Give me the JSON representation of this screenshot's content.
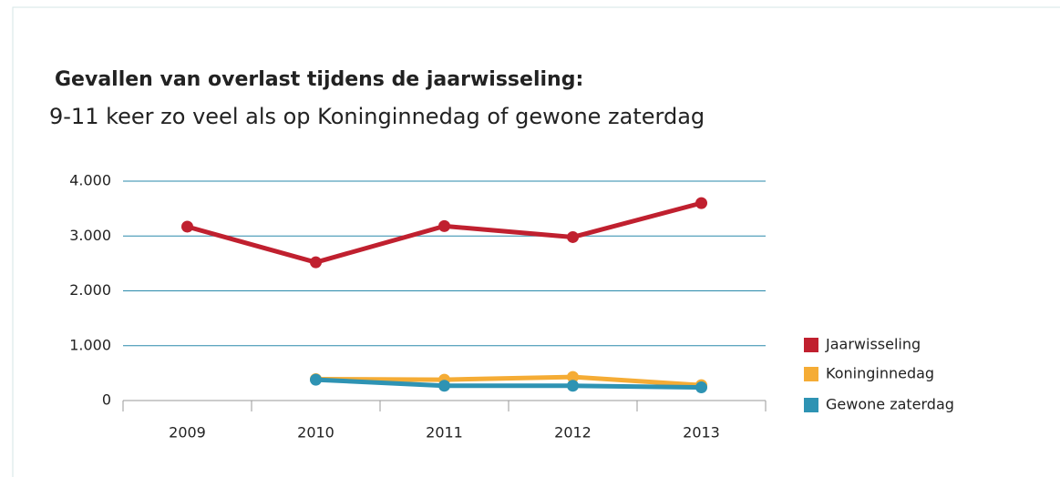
{
  "chart_data": {
    "type": "line",
    "title": "Gevallen van overlast tijdens de jaarwisseling:",
    "subtitle": "9-11 keer zo veel als op Koninginnedag of gewone zaterdag",
    "categories": [
      "2009",
      "2010",
      "2011",
      "2012",
      "2013"
    ],
    "series": [
      {
        "name": "Jaarwisseling",
        "color": "#c0202f",
        "values": [
          3170,
          2520,
          3180,
          2980,
          3600
        ]
      },
      {
        "name": "Koninginnedag",
        "color": "#f5ac35",
        "values": [
          null,
          390,
          380,
          430,
          280
        ]
      },
      {
        "name": "Gewone zaterdag",
        "color": "#2e93b3",
        "values": [
          null,
          380,
          270,
          270,
          240
        ]
      }
    ],
    "ylim": [
      0,
      4000
    ],
    "yticks": [
      0,
      {
        "value": 1000,
        "label": "1.000"
      },
      {
        "value": 2000,
        "label": "2.000"
      },
      {
        "value": 3000,
        "label": "3.000"
      },
      {
        "value": 4000,
        "label": "4.000"
      }
    ],
    "grid": true,
    "legend": "right"
  }
}
